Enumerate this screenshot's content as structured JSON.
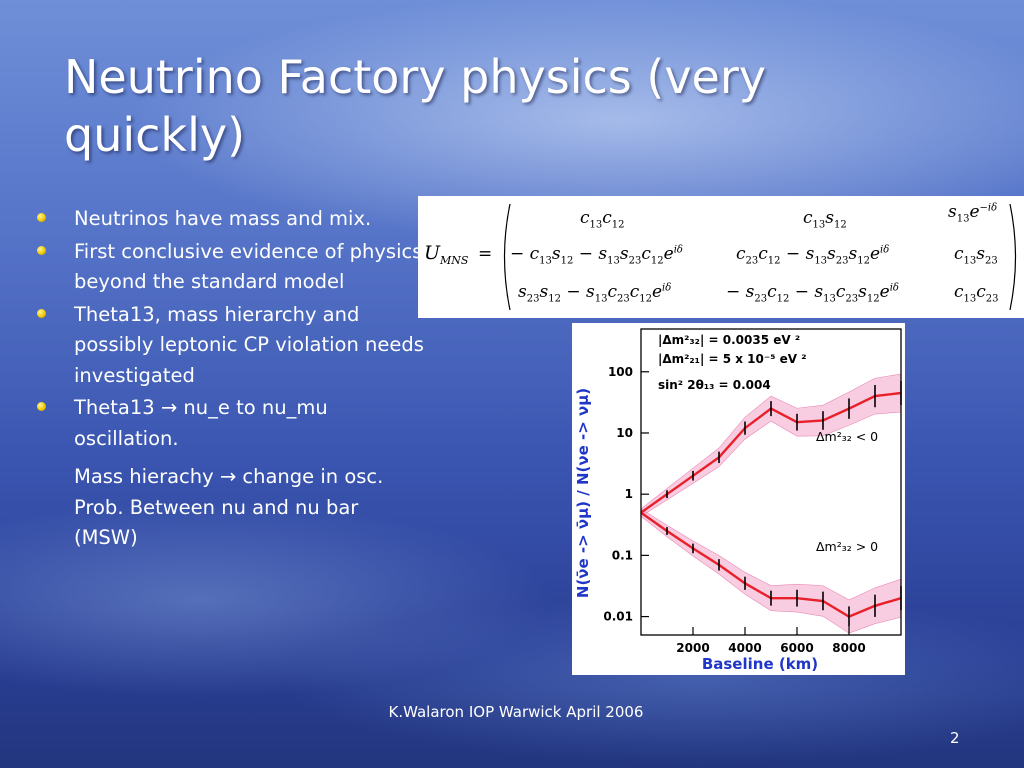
{
  "slide": {
    "title": "Neutrino Factory physics (very quickly)",
    "bullets": [
      {
        "text": "Neutrinos have mass and mix."
      },
      {
        "text": "First conclusive evidence of physics beyond the standard model"
      },
      {
        "text": "Theta13, mass hierarchy and possibly leptonic CP violation needs investigated"
      },
      {
        "text": "Theta13 → nu_e to nu_mu oscillation."
      }
    ],
    "sub_paragraph": "Mass hierachy → change in osc. Prob. Between nu and nu bar (MSW)",
    "footer": "K.Walaron IOP Warwick April 2006",
    "page_number": "2"
  },
  "matrix": {
    "lhs": "U",
    "lhs_sub": "MNS",
    "equals": "="
  },
  "chart_data": {
    "type": "line",
    "xlabel": "Baseline   (km)",
    "ylabel": "N(ν̄e -> ν̄μ) / N(νe -> νμ)",
    "xlim": [
      0,
      10000
    ],
    "ylim": [
      0.005,
      500
    ],
    "yscale": "log",
    "x_ticks": [
      "2000",
      "4000",
      "6000",
      "8000"
    ],
    "y_ticks": [
      "0.01",
      "0.1",
      "1",
      "10",
      "100"
    ],
    "annotations": [
      "|Δm²₃₂| = 0.0035 eV ²",
      "|Δm²₂₁| = 5 x 10⁻⁵ eV ²",
      "sin² 2θ₁₃ = 0.004",
      "Δm²₃₂ < 0",
      "Δm²₃₂ > 0"
    ],
    "series": [
      {
        "x": [
          0,
          1000,
          2000,
          3000,
          4000,
          5000,
          6000,
          7000,
          8000,
          9000,
          10000
        ],
        "values": [
          0.5,
          1.0,
          2.0,
          4.0,
          12,
          25,
          15,
          16,
          25,
          40,
          45
        ]
      },
      {
        "x": [
          0,
          1000,
          2000,
          3000,
          4000,
          5000,
          6000,
          7000,
          8000,
          9000,
          10000
        ],
        "values": [
          0.5,
          0.25,
          0.13,
          0.07,
          0.035,
          0.02,
          0.02,
          0.018,
          0.01,
          0.015,
          0.02
        ]
      }
    ],
    "color": "#e8202a",
    "band_color": "#f3a3c8"
  }
}
